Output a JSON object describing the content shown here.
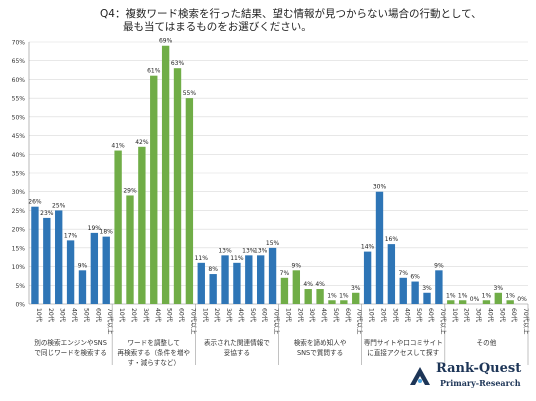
{
  "title": {
    "line1": "Q4：複数ワード検索を行った結果、望む情報が見つからない場合の行動として、",
    "line2": "最も当てはまるものをお選びください。"
  },
  "logo": {
    "name": "Rank-Quest",
    "sub": "Primary-Research"
  },
  "chart_data": {
    "type": "bar",
    "ylim": [
      0,
      70
    ],
    "yticks": [
      "0%",
      "5%",
      "10%",
      "15%",
      "20%",
      "25%",
      "30%",
      "35%",
      "40%",
      "45%",
      "50%",
      "55%",
      "60%",
      "65%",
      "70%"
    ],
    "age_labels": [
      "10代",
      "20代",
      "30代",
      "40代",
      "50代",
      "60代",
      "70代以上"
    ],
    "groups": [
      {
        "label_lines": [
          "別の検索エンジンやSNS",
          "で同じワードを検索する"
        ],
        "color": "#2e75b6",
        "values": [
          26,
          23,
          25,
          17,
          9,
          19,
          18
        ],
        "value_labels": [
          "26%",
          "23%",
          "25%",
          "17%",
          "9%",
          "19%",
          "18%"
        ]
      },
      {
        "label_lines": [
          "ワードを調整して",
          "再検索する（条件を増や",
          "す・減らすなど）"
        ],
        "color": "#70ad47",
        "values": [
          41,
          29,
          42,
          61,
          69,
          63,
          55
        ],
        "value_labels": [
          "41%",
          "29%",
          "42%",
          "61%",
          "69%",
          "63%",
          "55%"
        ]
      },
      {
        "label_lines": [
          "表示された関連情報で",
          "妥協する"
        ],
        "color": "#2e75b6",
        "values": [
          11,
          8,
          13,
          11,
          13,
          13,
          15
        ],
        "value_labels": [
          "11%",
          "8%",
          "13%",
          "11%",
          "13%",
          "13%",
          "15%"
        ]
      },
      {
        "label_lines": [
          "検索を諦め知人や",
          "SNSで質問する"
        ],
        "color": "#70ad47",
        "values": [
          7,
          9,
          4,
          4,
          1,
          1,
          3
        ],
        "value_labels": [
          "7%",
          "9%",
          "4%",
          "4%",
          "1%",
          "1%",
          "3%"
        ]
      },
      {
        "label_lines": [
          "専門サイトや口コミサイト",
          "に直接アクセスして探す"
        ],
        "color": "#2e75b6",
        "values": [
          14,
          30,
          16,
          7,
          6,
          3,
          9
        ],
        "value_labels": [
          "14%",
          "30%",
          "16%",
          "7%",
          "6%",
          "3%",
          "9%"
        ]
      },
      {
        "label_lines": [
          "その他"
        ],
        "color": "#70ad47",
        "values": [
          1,
          1,
          0,
          1,
          3,
          1,
          0
        ],
        "value_labels": [
          "1%",
          "1%",
          "0%",
          "1%",
          "3%",
          "1%",
          "0%"
        ]
      }
    ]
  }
}
